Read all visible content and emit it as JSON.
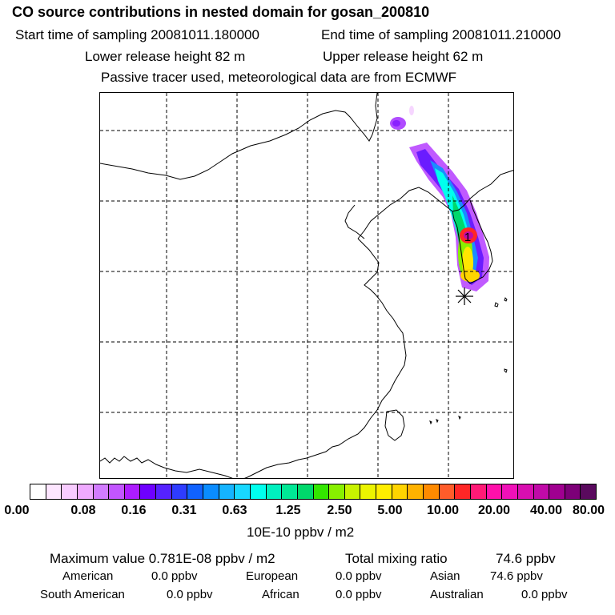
{
  "header": {
    "title": "CO  source contributions in nested domain for gosan_200810",
    "start_label": "Start time of sampling 20081011.180000",
    "end_label": "End time of sampling 20081011.210000",
    "lower_label": "Lower release height   82 m",
    "upper_label": "Upper release height   62 m",
    "note": "Passive tracer used, meteorological data are from ECMWF"
  },
  "map": {
    "receptor_marker": "1",
    "station_symbol": "asterisk-icon"
  },
  "colorbar": {
    "colors": [
      "#ffffff",
      "#fde6ff",
      "#f8ccff",
      "#efaaff",
      "#d27cff",
      "#c255ff",
      "#ad1cff",
      "#6e00ff",
      "#5522ff",
      "#2e3cff",
      "#1062ff",
      "#0a8cff",
      "#15b4ff",
      "#18d8ff",
      "#00ffee",
      "#00f0bf",
      "#00e895",
      "#00d86b",
      "#33e600",
      "#88f000",
      "#c8f200",
      "#ecf400",
      "#ffee00",
      "#ffd400",
      "#ffb200",
      "#ff8a00",
      "#ff5c2a",
      "#ff2626",
      "#ff1a76",
      "#ff10aa",
      "#f010b8",
      "#d80eb0",
      "#c00aa8",
      "#a00090",
      "#7d0078",
      "#5a0a5e"
    ],
    "ticks": [
      "0.00",
      "0.08",
      "0.16",
      "0.31",
      "0.63",
      "1.25",
      "2.50",
      "5.00",
      "10.00",
      "20.00",
      "40.00",
      "80.00"
    ],
    "units": "10E-10 ppbv / m2"
  },
  "stats": {
    "max_label": "Maximum value  0.781E-08 ppbv / m2",
    "total_label": "Total mixing ratio",
    "total_value": "74.6 ppbv"
  },
  "sources": [
    {
      "name": "American",
      "value": "0.0 ppbv"
    },
    {
      "name": "European",
      "value": "0.0 ppbv"
    },
    {
      "name": "Asian",
      "value": "74.6 ppbv"
    },
    {
      "name": "South American",
      "value": "0.0 ppbv"
    },
    {
      "name": "African",
      "value": "0.0 ppbv"
    },
    {
      "name": "Australian",
      "value": "0.0 ppbv"
    }
  ]
}
